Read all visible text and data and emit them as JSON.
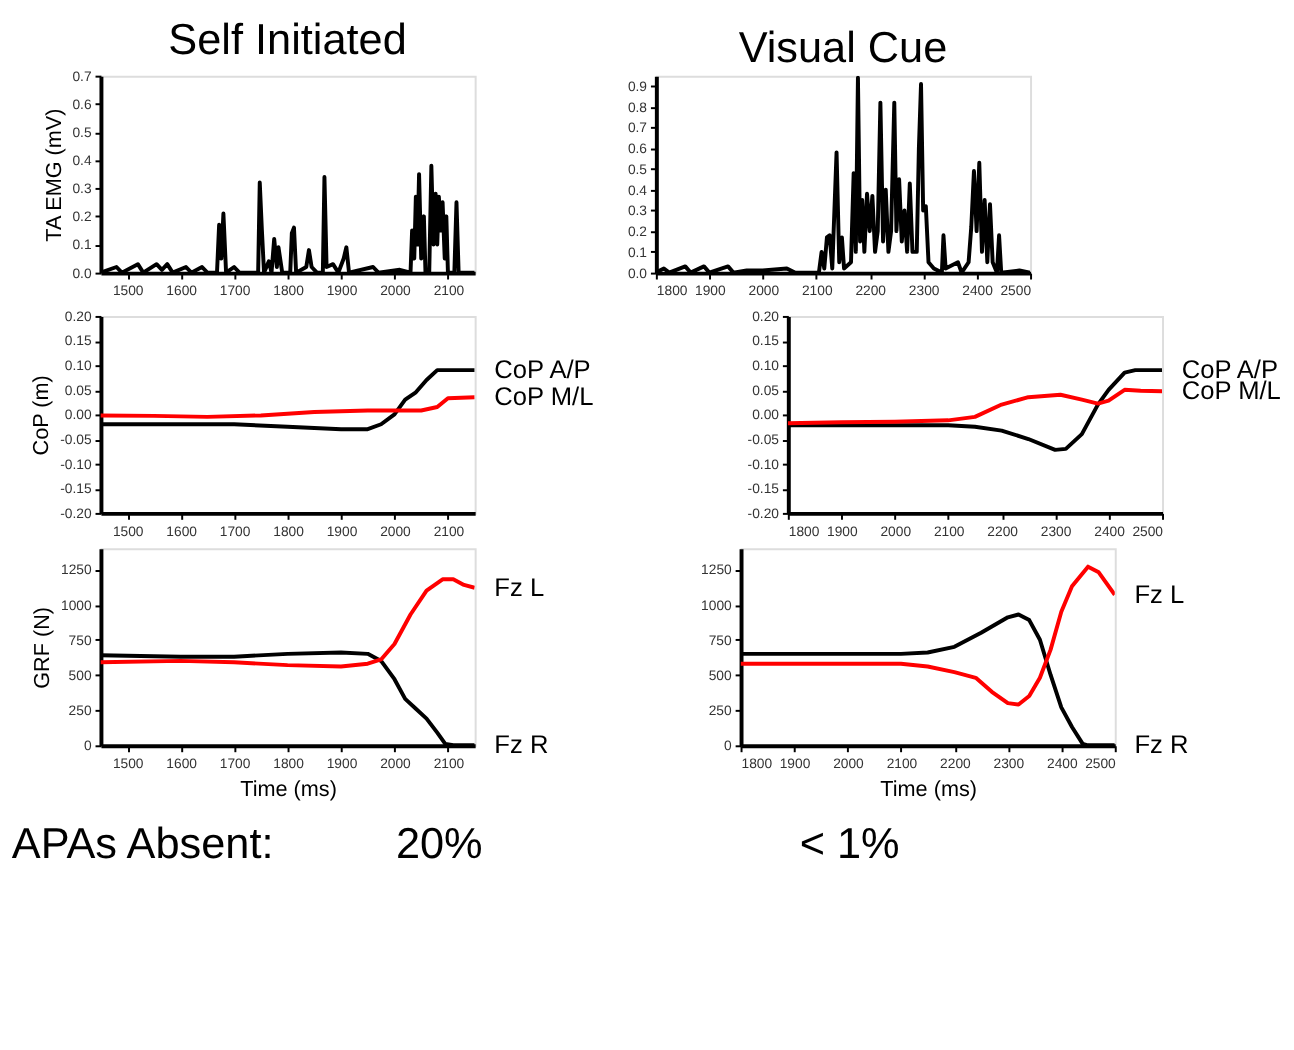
{
  "chart_data": [
    {
      "type": "line",
      "title": "Self Initiated",
      "ylabel": "TA EMG (mV)",
      "xlim": [
        1450,
        2150
      ],
      "xticks": [
        1500,
        1600,
        1700,
        1800,
        1900,
        2000,
        2100
      ],
      "ylim": [
        0,
        0.7
      ],
      "yticks": [
        {
          "value": 0,
          "label": "0.0"
        },
        0.1,
        0.2,
        0.3,
        0.4,
        0.5,
        0.6,
        0.7
      ],
      "grid": false,
      "series": [
        {
          "color": "#000000",
          "x": [
            1450,
            1480,
            1490,
            1520,
            1530,
            1555,
            1565,
            1575,
            1585,
            1610,
            1620,
            1640,
            1650,
            1668,
            1672,
            1676,
            1680,
            1685,
            1700,
            1710,
            1745,
            1748,
            1752,
            1756,
            1765,
            1770,
            1775,
            1780,
            1783,
            1790,
            1805,
            1808,
            1812,
            1816,
            1835,
            1840,
            1845,
            1855,
            1866,
            1869,
            1873,
            1885,
            1895,
            1905,
            1910,
            1915,
            1960,
            1970,
            2010,
            2030,
            2033,
            2037,
            2040,
            2043,
            2046,
            2050,
            2055,
            2058,
            2065,
            2069,
            2073,
            2077,
            2080,
            2083,
            2087,
            2090,
            2094,
            2097,
            2100,
            2112,
            2116,
            2120,
            2150
          ],
          "values": [
            0.0,
            0.02,
            0.0,
            0.03,
            0.0,
            0.03,
            0.01,
            0.03,
            0.0,
            0.02,
            0.0,
            0.02,
            0.0,
            0.0,
            0.17,
            0.05,
            0.21,
            0.0,
            0.02,
            0.0,
            0.0,
            0.32,
            0.15,
            0.0,
            0.04,
            0.0,
            0.12,
            0.02,
            0.09,
            0.0,
            0.0,
            0.14,
            0.16,
            0.0,
            0.02,
            0.08,
            0.02,
            0.0,
            0.0,
            0.34,
            0.02,
            0.03,
            0.0,
            0.05,
            0.09,
            0.0,
            0.02,
            0.0,
            0.01,
            0.0,
            0.15,
            0.05,
            0.27,
            0.1,
            0.35,
            0.05,
            0.2,
            0.0,
            0.0,
            0.38,
            0.1,
            0.28,
            0.1,
            0.27,
            0.15,
            0.25,
            0.05,
            0.2,
            0.0,
            0.0,
            0.25,
            0.0,
            0.0
          ]
        }
      ]
    },
    {
      "type": "line",
      "title": "Visual Cue",
      "xlim": [
        1800,
        2500
      ],
      "xticks": [
        1800,
        1900,
        2000,
        2100,
        2200,
        2300,
        2400,
        2500
      ],
      "ylim": [
        0,
        0.95
      ],
      "yticks": [
        {
          "value": 0,
          "label": "0.0"
        },
        0.1,
        0.2,
        0.3,
        0.4,
        0.5,
        0.6,
        0.7,
        0.8,
        0.9
      ],
      "grid": false,
      "series": [
        {
          "color": "#000000",
          "x": [
            1800,
            1815,
            1825,
            1855,
            1865,
            1890,
            1900,
            1935,
            1945,
            1970,
            2000,
            2045,
            2060,
            2105,
            2110,
            2115,
            2120,
            2125,
            2130,
            2138,
            2143,
            2148,
            2152,
            2165,
            2170,
            2174,
            2178,
            2182,
            2186,
            2190,
            2195,
            2200,
            2205,
            2210,
            2215,
            2220,
            2225,
            2230,
            2235,
            2240,
            2246,
            2250,
            2255,
            2260,
            2265,
            2270,
            2275,
            2280,
            2288,
            2292,
            2296,
            2300,
            2305,
            2310,
            2320,
            2335,
            2338,
            2342,
            2365,
            2372,
            2385,
            2390,
            2395,
            2400,
            2405,
            2410,
            2415,
            2420,
            2425,
            2430,
            2438,
            2442,
            2446,
            2480,
            2500
          ],
          "values": [
            0.0,
            0.02,
            0.0,
            0.03,
            0.0,
            0.03,
            0.0,
            0.03,
            0.0,
            0.01,
            0.01,
            0.02,
            0.0,
            0.0,
            0.1,
            0.02,
            0.17,
            0.18,
            0.02,
            0.58,
            0.05,
            0.17,
            0.02,
            0.05,
            0.48,
            0.1,
            0.94,
            0.15,
            0.35,
            0.1,
            0.38,
            0.2,
            0.37,
            0.1,
            0.2,
            0.82,
            0.15,
            0.4,
            0.1,
            0.2,
            0.82,
            0.2,
            0.45,
            0.15,
            0.3,
            0.1,
            0.43,
            0.1,
            0.1,
            0.6,
            0.91,
            0.3,
            0.32,
            0.05,
            0.02,
            0.0,
            0.18,
            0.02,
            0.05,
            0.0,
            0.05,
            0.22,
            0.49,
            0.2,
            0.53,
            0.1,
            0.35,
            0.05,
            0.33,
            0.05,
            0.0,
            0.18,
            0.0,
            0.01,
            0.0
          ]
        }
      ]
    },
    {
      "type": "line",
      "ylabel": "CoP (m)",
      "xlim": [
        1450,
        2150
      ],
      "xticks": [
        1500,
        1600,
        1700,
        1800,
        1900,
        2000,
        2100
      ],
      "ylim": [
        -0.2,
        0.2
      ],
      "yticks": [
        {
          "value": -0.2,
          "label": "-0.20"
        },
        -0.15,
        {
          "value": -0.1,
          "label": "-0.10"
        },
        -0.05,
        {
          "value": 0,
          "label": "0.00"
        },
        0.05,
        {
          "value": 0.1,
          "label": "0.10"
        },
        0.15,
        {
          "value": 0.2,
          "label": "0.20"
        }
      ],
      "grid": false,
      "series": [
        {
          "name": "CoP A/P",
          "color": "#000000",
          "x": [
            1450,
            1600,
            1700,
            1800,
            1900,
            1950,
            1975,
            2000,
            2020,
            2040,
            2060,
            2080,
            2100,
            2150
          ],
          "values": [
            -0.02,
            -0.02,
            -0.02,
            -0.025,
            -0.03,
            -0.03,
            -0.02,
            0.0,
            0.03,
            0.045,
            0.07,
            0.09,
            0.09,
            0.09
          ]
        },
        {
          "name": "CoP M/L",
          "color": "#ff0000",
          "x": [
            1450,
            1550,
            1650,
            1750,
            1850,
            1950,
            2050,
            2080,
            2100,
            2150
          ],
          "values": [
            -0.002,
            -0.003,
            -0.005,
            -0.002,
            0.005,
            0.008,
            0.008,
            0.015,
            0.033,
            0.035
          ]
        }
      ]
    },
    {
      "type": "line",
      "xlim": [
        1800,
        2500
      ],
      "xticks": [
        1800,
        1900,
        2000,
        2100,
        2200,
        2300,
        2400,
        2500
      ],
      "ylim": [
        -0.2,
        0.2
      ],
      "yticks": [
        {
          "value": -0.2,
          "label": "-0.20"
        },
        -0.15,
        {
          "value": -0.1,
          "label": "-0.10"
        },
        -0.05,
        {
          "value": 0,
          "label": "0.00"
        },
        0.05,
        {
          "value": 0.1,
          "label": "0.10"
        },
        0.15,
        {
          "value": 0.2,
          "label": "0.20"
        }
      ],
      "grid": false,
      "series": [
        {
          "name": "CoP A/P",
          "color": "#000000",
          "x": [
            1800,
            2000,
            2100,
            2150,
            2200,
            2250,
            2300,
            2320,
            2350,
            2380,
            2400,
            2430,
            2450,
            2500
          ],
          "values": [
            -0.022,
            -0.022,
            -0.022,
            -0.025,
            -0.033,
            -0.05,
            -0.072,
            -0.07,
            -0.04,
            0.02,
            0.05,
            0.085,
            0.09,
            0.09
          ]
        },
        {
          "name": "CoP M/L",
          "color": "#ff0000",
          "x": [
            1800,
            1900,
            2000,
            2100,
            2150,
            2200,
            2250,
            2310,
            2350,
            2380,
            2400,
            2430,
            2460,
            2500
          ],
          "values": [
            -0.018,
            -0.016,
            -0.015,
            -0.012,
            -0.005,
            0.02,
            0.035,
            0.04,
            0.03,
            0.022,
            0.028,
            0.05,
            0.048,
            0.047
          ]
        }
      ]
    },
    {
      "type": "line",
      "ylabel": "GRF (N)",
      "xlabel": "Time (ms)",
      "xlim": [
        1450,
        2150
      ],
      "xticks": [
        1500,
        1600,
        1700,
        1800,
        1900,
        2000,
        2100
      ],
      "ylim": [
        0,
        1400
      ],
      "yticks": [
        0,
        250,
        500,
        750,
        1000,
        1250
      ],
      "grid": false,
      "annotations": [
        "APAs Absent:",
        "20%"
      ],
      "series": [
        {
          "name": "Fz R",
          "color": "#000000",
          "x": [
            1450,
            1600,
            1700,
            1800,
            1900,
            1950,
            1975,
            2000,
            2020,
            2040,
            2060,
            2080,
            2095,
            2110,
            2150
          ],
          "values": [
            640,
            630,
            630,
            650,
            660,
            650,
            600,
            470,
            330,
            260,
            190,
            90,
            10,
            0,
            0
          ]
        },
        {
          "name": "Fz L",
          "color": "#ff0000",
          "x": [
            1450,
            1600,
            1700,
            1800,
            1900,
            1950,
            1975,
            2000,
            2030,
            2060,
            2090,
            2110,
            2130,
            2150
          ],
          "values": [
            590,
            600,
            590,
            570,
            560,
            580,
            610,
            720,
            930,
            1100,
            1180,
            1180,
            1140,
            1120
          ]
        }
      ]
    },
    {
      "type": "line",
      "xlabel": "Time (ms)",
      "xlim": [
        1800,
        2500
      ],
      "xticks": [
        1800,
        1900,
        2000,
        2100,
        2200,
        2300,
        2400,
        2500
      ],
      "ylim": [
        0,
        1400
      ],
      "yticks": [
        0,
        250,
        500,
        750,
        1000,
        1250
      ],
      "grid": false,
      "annotations": [
        "< 1%"
      ],
      "series": [
        {
          "name": "Fz R",
          "color": "#000000",
          "x": [
            1800,
            2000,
            2100,
            2150,
            2200,
            2250,
            2300,
            2320,
            2340,
            2360,
            2380,
            2400,
            2420,
            2440,
            2450,
            2500
          ],
          "values": [
            650,
            650,
            650,
            660,
            700,
            800,
            910,
            930,
            890,
            750,
            500,
            270,
            130,
            10,
            0,
            0
          ]
        },
        {
          "name": "Fz L",
          "color": "#ff0000",
          "x": [
            1800,
            2000,
            2100,
            2150,
            2200,
            2240,
            2270,
            2300,
            2320,
            2340,
            2360,
            2380,
            2400,
            2420,
            2450,
            2470,
            2500
          ],
          "values": [
            580,
            580,
            580,
            560,
            520,
            480,
            380,
            300,
            290,
            350,
            480,
            680,
            950,
            1130,
            1270,
            1230,
            1070
          ]
        }
      ]
    }
  ]
}
